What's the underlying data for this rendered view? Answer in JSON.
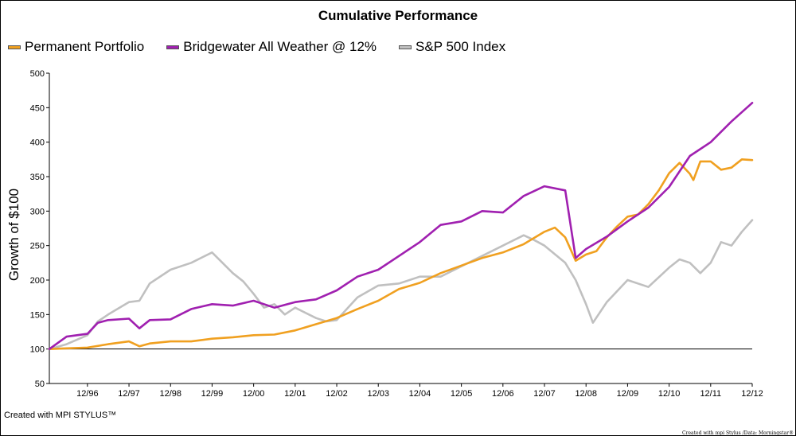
{
  "chart_data": {
    "type": "line",
    "title": "Cumulative Performance",
    "ylabel": "Growth of $100",
    "xlabel": "",
    "ylim": [
      50,
      500
    ],
    "yticks": [
      50,
      100,
      150,
      200,
      250,
      300,
      350,
      400,
      450,
      500
    ],
    "xticks": [
      "12/96",
      "12/97",
      "12/98",
      "12/99",
      "12/00",
      "12/01",
      "12/02",
      "12/03",
      "12/04",
      "12/05",
      "12/06",
      "12/07",
      "12/08",
      "12/09",
      "12/10",
      "12/11",
      "12/12"
    ],
    "x_start": "1996-01",
    "x_end": "2012-12",
    "reference_line": 100,
    "legend_position": "top-left",
    "series": [
      {
        "name": "Permanent Portfolio",
        "color": "#f0a020",
        "points": [
          [
            "1996-01",
            100
          ],
          [
            "1996-06",
            101
          ],
          [
            "1996-12",
            102
          ],
          [
            "1997-06",
            107
          ],
          [
            "1997-12",
            111
          ],
          [
            "1998-03",
            104
          ],
          [
            "1998-06",
            108
          ],
          [
            "1998-12",
            111
          ],
          [
            "1999-06",
            111
          ],
          [
            "1999-12",
            115
          ],
          [
            "2000-06",
            117
          ],
          [
            "2000-12",
            120
          ],
          [
            "2001-06",
            121
          ],
          [
            "2001-12",
            127
          ],
          [
            "2002-06",
            136
          ],
          [
            "2002-12",
            145
          ],
          [
            "2003-06",
            158
          ],
          [
            "2003-12",
            170
          ],
          [
            "2004-06",
            187
          ],
          [
            "2004-12",
            196
          ],
          [
            "2005-06",
            210
          ],
          [
            "2005-12",
            221
          ],
          [
            "2006-06",
            232
          ],
          [
            "2006-12",
            240
          ],
          [
            "2007-06",
            252
          ],
          [
            "2007-12",
            270
          ],
          [
            "2008-03",
            276
          ],
          [
            "2008-06",
            262
          ],
          [
            "2008-09",
            228
          ],
          [
            "2008-12",
            237
          ],
          [
            "2009-03",
            242
          ],
          [
            "2009-06",
            262
          ],
          [
            "2009-09",
            278
          ],
          [
            "2009-12",
            292
          ],
          [
            "2010-03",
            295
          ],
          [
            "2010-06",
            310
          ],
          [
            "2010-09",
            330
          ],
          [
            "2010-12",
            355
          ],
          [
            "2011-03",
            370
          ],
          [
            "2011-06",
            354
          ],
          [
            "2011-07",
            345
          ],
          [
            "2011-09",
            372
          ],
          [
            "2011-12",
            372
          ],
          [
            "2012-03",
            360
          ],
          [
            "2012-06",
            363
          ],
          [
            "2012-09",
            375
          ],
          [
            "2012-12",
            374
          ]
        ]
      },
      {
        "name": "Bridgewater All Weather @ 12%",
        "color": "#a020b0",
        "points": [
          [
            "1996-01",
            100
          ],
          [
            "1996-06",
            118
          ],
          [
            "1996-12",
            122
          ],
          [
            "1997-03",
            138
          ],
          [
            "1997-06",
            142
          ],
          [
            "1997-12",
            144
          ],
          [
            "1998-03",
            130
          ],
          [
            "1998-06",
            142
          ],
          [
            "1998-12",
            143
          ],
          [
            "1999-06",
            158
          ],
          [
            "1999-12",
            165
          ],
          [
            "2000-06",
            163
          ],
          [
            "2000-12",
            170
          ],
          [
            "2001-06",
            160
          ],
          [
            "2001-12",
            168
          ],
          [
            "2002-06",
            172
          ],
          [
            "2002-12",
            185
          ],
          [
            "2003-06",
            205
          ],
          [
            "2003-12",
            215
          ],
          [
            "2004-06",
            235
          ],
          [
            "2004-12",
            255
          ],
          [
            "2005-06",
            280
          ],
          [
            "2005-12",
            285
          ],
          [
            "2006-06",
            300
          ],
          [
            "2006-12",
            298
          ],
          [
            "2007-06",
            322
          ],
          [
            "2007-12",
            336
          ],
          [
            "2008-06",
            330
          ],
          [
            "2008-09",
            232
          ],
          [
            "2008-12",
            245
          ],
          [
            "2009-06",
            263
          ],
          [
            "2009-12",
            285
          ],
          [
            "2010-06",
            305
          ],
          [
            "2010-12",
            335
          ],
          [
            "2011-06",
            380
          ],
          [
            "2011-12",
            400
          ],
          [
            "2012-06",
            430
          ],
          [
            "2012-12",
            457
          ]
        ]
      },
      {
        "name": "S&P 500 Index",
        "color": "#c0c0c0",
        "points": [
          [
            "1996-01",
            100
          ],
          [
            "1996-06",
            107
          ],
          [
            "1996-12",
            120
          ],
          [
            "1997-03",
            140
          ],
          [
            "1997-06",
            150
          ],
          [
            "1997-12",
            168
          ],
          [
            "1998-03",
            170
          ],
          [
            "1998-06",
            195
          ],
          [
            "1998-12",
            215
          ],
          [
            "1999-06",
            225
          ],
          [
            "1999-12",
            240
          ],
          [
            "2000-03",
            225
          ],
          [
            "2000-06",
            210
          ],
          [
            "2000-09",
            198
          ],
          [
            "2000-12",
            180
          ],
          [
            "2001-03",
            160
          ],
          [
            "2001-06",
            165
          ],
          [
            "2001-09",
            150
          ],
          [
            "2001-12",
            160
          ],
          [
            "2002-06",
            145
          ],
          [
            "2002-09",
            140
          ],
          [
            "2002-12",
            142
          ],
          [
            "2003-06",
            175
          ],
          [
            "2003-12",
            192
          ],
          [
            "2004-06",
            195
          ],
          [
            "2004-12",
            205
          ],
          [
            "2005-06",
            205
          ],
          [
            "2005-12",
            220
          ],
          [
            "2006-06",
            235
          ],
          [
            "2006-12",
            250
          ],
          [
            "2007-06",
            265
          ],
          [
            "2007-09",
            258
          ],
          [
            "2007-12",
            250
          ],
          [
            "2008-06",
            225
          ],
          [
            "2008-09",
            200
          ],
          [
            "2008-12",
            165
          ],
          [
            "2009-02",
            138
          ],
          [
            "2009-06",
            168
          ],
          [
            "2009-12",
            200
          ],
          [
            "2010-06",
            190
          ],
          [
            "2010-12",
            218
          ],
          [
            "2011-03",
            230
          ],
          [
            "2011-06",
            225
          ],
          [
            "2011-09",
            210
          ],
          [
            "2011-12",
            225
          ],
          [
            "2012-03",
            255
          ],
          [
            "2012-06",
            250
          ],
          [
            "2012-09",
            270
          ],
          [
            "2012-12",
            287
          ]
        ]
      }
    ]
  },
  "credit": "Created with MPI STYLUS™",
  "source": "Created with mpi Stylus /Data: Morningstar®"
}
